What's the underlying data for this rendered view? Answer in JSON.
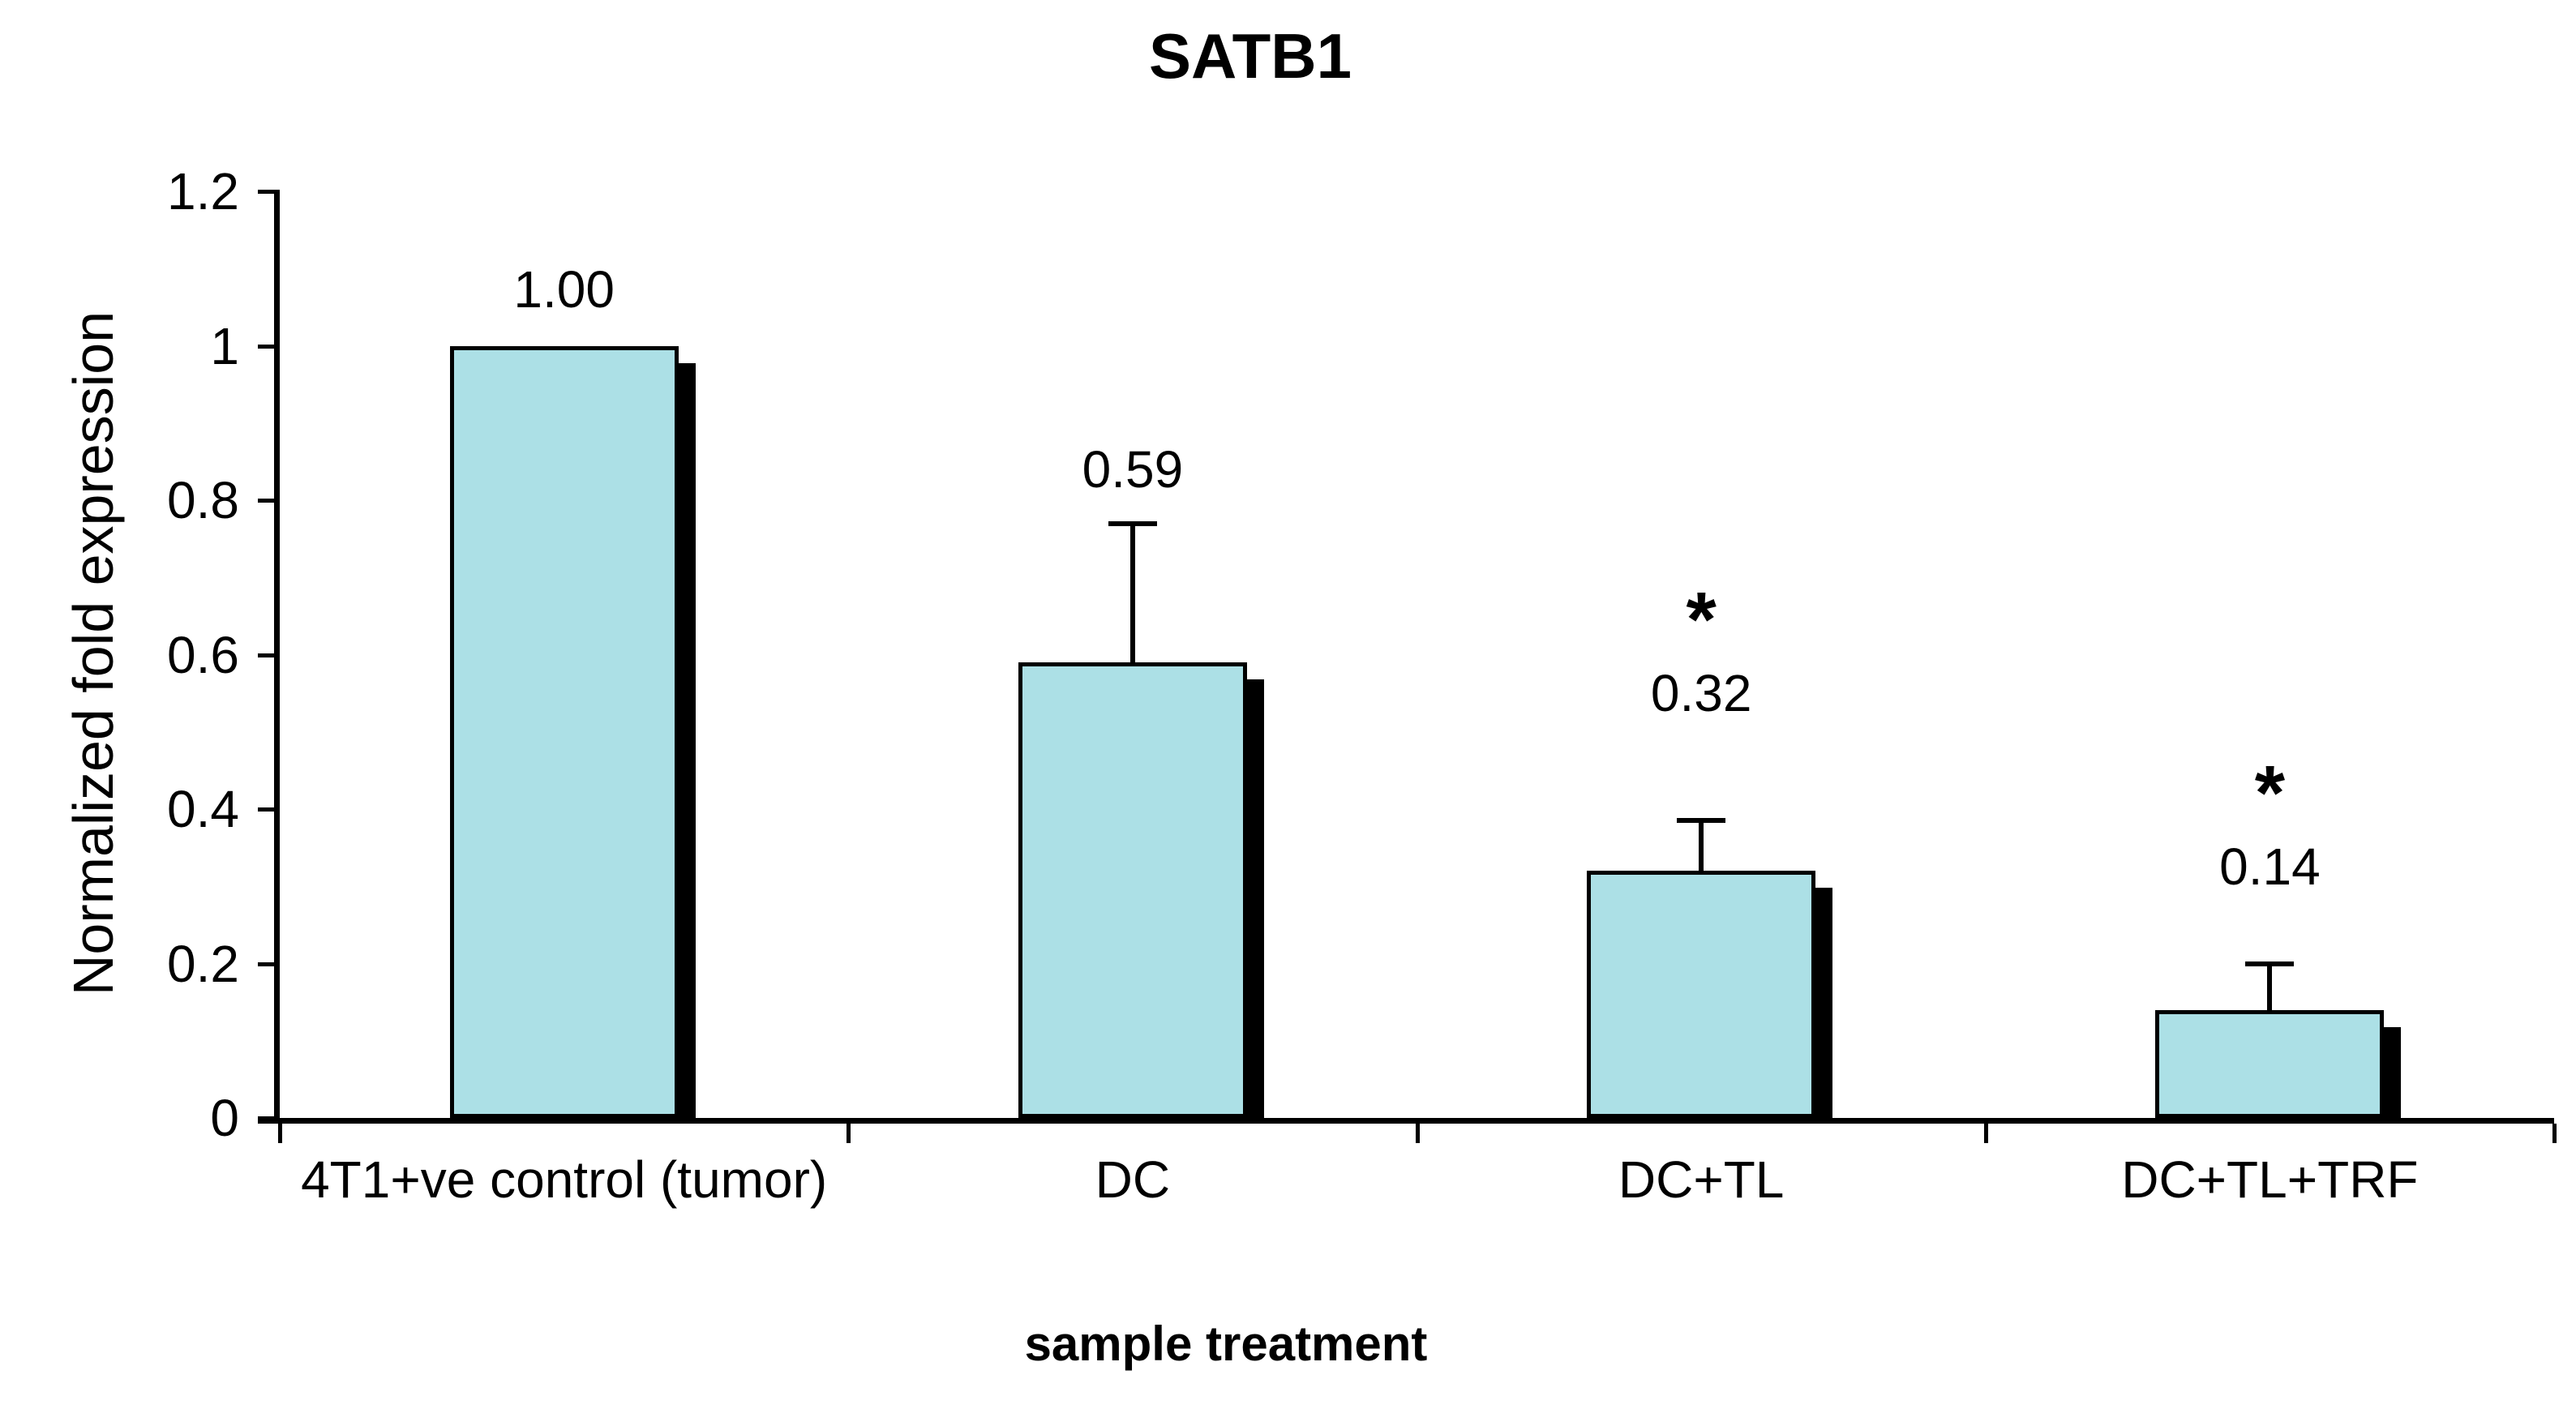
{
  "chart_data": {
    "type": "bar",
    "title": "SATB1",
    "xlabel": "sample treatment",
    "ylabel": "Normalized fold expression",
    "categories": [
      "4T1+ve control (tumor)",
      "DC",
      "DC+TL",
      "DC+TL+TRF"
    ],
    "values": [
      1.0,
      0.59,
      0.32,
      0.14
    ],
    "value_labels": [
      "1.00",
      "0.59",
      "0.32",
      "0.14"
    ],
    "significance": [
      "",
      "",
      "*",
      "*"
    ],
    "error_plus": [
      0,
      0.18,
      0.065,
      0.06
    ],
    "y_ticks": [
      {
        "value": 1.2,
        "label": "1.2"
      },
      {
        "value": 1.0,
        "label": "1"
      },
      {
        "value": 0.8,
        "label": "0.8"
      },
      {
        "value": 0.6,
        "label": "0.6"
      },
      {
        "value": 0.4,
        "label": "0.4"
      },
      {
        "value": 0.2,
        "label": "0.2"
      },
      {
        "value": 0.0,
        "label": "0"
      }
    ],
    "ylim": [
      0,
      1.2
    ],
    "grid": false,
    "legend_position": "none",
    "bar_color": "#ACE0E6",
    "bar_border_color": "#000000",
    "shadow_color": "#000000",
    "axis_color": "#000000",
    "background_color": "#FFFFFF"
  }
}
